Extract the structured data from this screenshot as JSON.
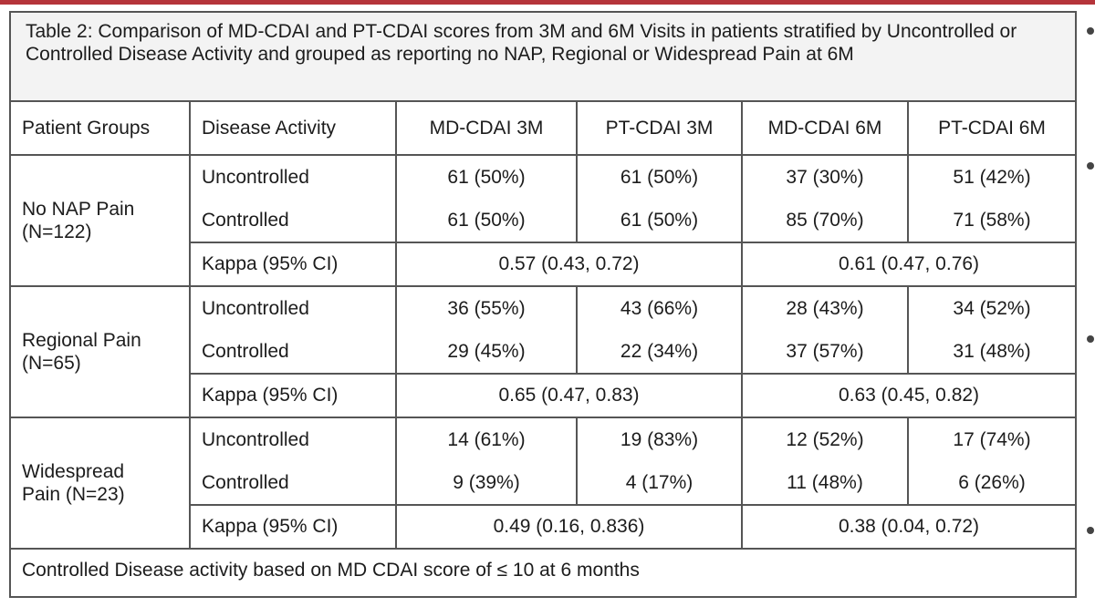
{
  "caption": "Table 2: Comparison of MD-CDAI and PT-CDAI scores from 3M and 6M Visits in patients stratified by Uncontrolled or Controlled Disease Activity and grouped as reporting no NAP, Regional or Widespread Pain at 6M",
  "headers": [
    "Patient Groups",
    "Disease Activity",
    "MD-CDAI 3M",
    "PT-CDAI 3M",
    "MD-CDAI 6M",
    "PT-CDAI 6M"
  ],
  "groups": [
    {
      "name": "No NAP Pain\n(N=122)",
      "rows": [
        {
          "activity": "Uncontrolled",
          "values": [
            "61 (50%)",
            "61 (50%)",
            "37 (30%)",
            "51 (42%)"
          ]
        },
        {
          "activity": "Controlled",
          "values": [
            "61 (50%)",
            "61 (50%)",
            "85 (70%)",
            "71 (58%)"
          ]
        }
      ],
      "kappa_label": "Kappa (95% CI)",
      "kappa_3m": "0.57 (0.43, 0.72)",
      "kappa_6m": "0.61 (0.47, 0.76)"
    },
    {
      "name": "Regional Pain\n(N=65)",
      "rows": [
        {
          "activity": "Uncontrolled",
          "values": [
            "36 (55%)",
            "43 (66%)",
            "28 (43%)",
            "34 (52%)"
          ]
        },
        {
          "activity": "Controlled",
          "values": [
            "29 (45%)",
            "22 (34%)",
            "37 (57%)",
            "31 (48%)"
          ]
        }
      ],
      "kappa_label": "Kappa (95% CI)",
      "kappa_3m": "0.65 (0.47, 0.83)",
      "kappa_6m": "0.63 (0.45, 0.82)"
    },
    {
      "name": "Widespread\nPain (N=23)",
      "rows": [
        {
          "activity": "Uncontrolled",
          "values": [
            "14 (61%)",
            "19 (83%)",
            "12 (52%)",
            "17 (74%)"
          ]
        },
        {
          "activity": "Controlled",
          "values": [
            "9 (39%)",
            "4 (17%)",
            "11 (48%)",
            "6 (26%)"
          ]
        }
      ],
      "kappa_label": "Kappa (95% CI)",
      "kappa_3m": "0.49 (0.16, 0.836)",
      "kappa_6m": "0.38 (0.04, 0.72)"
    }
  ],
  "footnote": "Controlled Disease activity based on MD CDAI score of ≤ 10 at 6 months",
  "colors": {
    "accent_rule": "#b5343a",
    "caption_bg": "#f3f3f3",
    "border": "#555555"
  }
}
